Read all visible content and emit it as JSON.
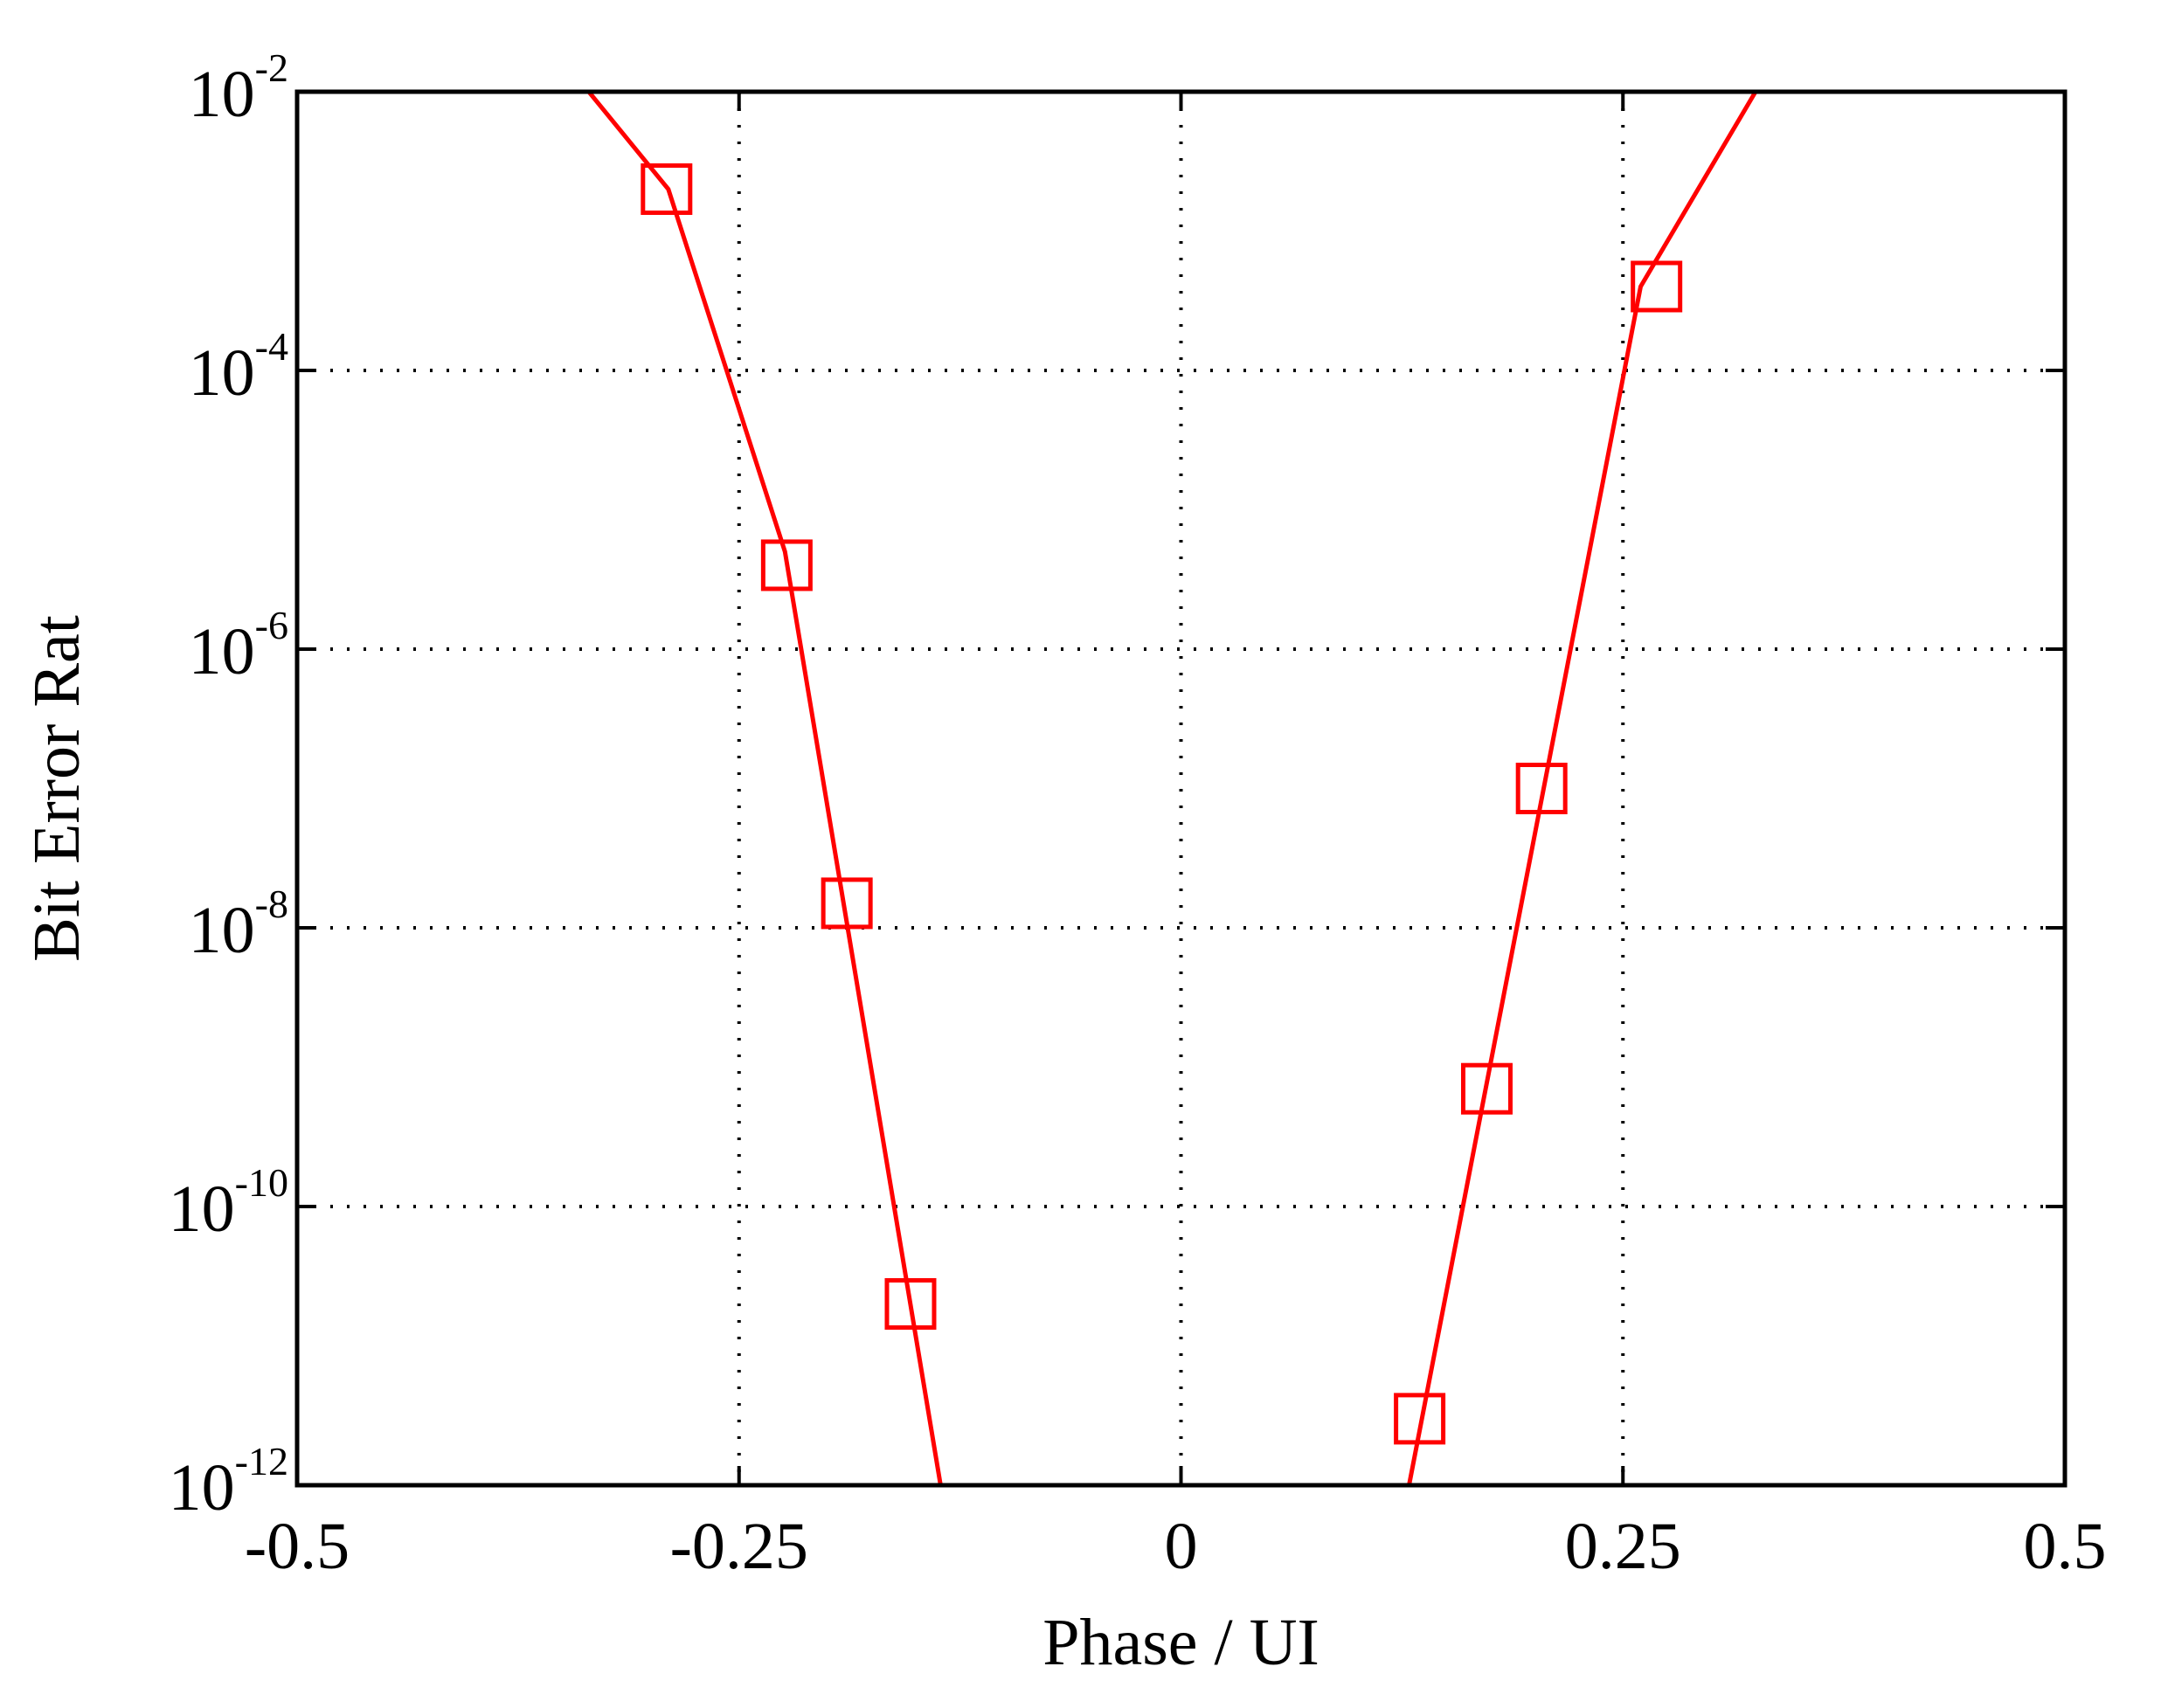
{
  "chart_data": {
    "type": "line",
    "xlabel": "Phase / UI",
    "ylabel": "Bit Error Rat",
    "xlim": [
      -0.5,
      0.5
    ],
    "ylim_log10": [
      -12,
      -2
    ],
    "y_scale": "log",
    "grid": true,
    "xticks": [
      {
        "value": -0.5,
        "label": "-0.5"
      },
      {
        "value": -0.25,
        "label": "-0.25"
      },
      {
        "value": 0,
        "label": "0"
      },
      {
        "value": 0.25,
        "label": "0.25"
      },
      {
        "value": 0.5,
        "label": "0.5"
      }
    ],
    "yticks": [
      {
        "value": 0.01,
        "base": "10",
        "exp": "-2"
      },
      {
        "value": 0.0001,
        "base": "10",
        "exp": "-4"
      },
      {
        "value": 1e-06,
        "base": "10",
        "exp": "-6"
      },
      {
        "value": 1e-08,
        "base": "10",
        "exp": "-8"
      },
      {
        "value": 1e-10,
        "base": "10",
        "exp": "-10"
      },
      {
        "value": 1e-12,
        "base": "10",
        "exp": "-12"
      }
    ],
    "colors": {
      "series": "#ff0000"
    },
    "series": [
      {
        "role": "left-measured",
        "marker": "square",
        "line": false,
        "x": [
          -0.291,
          -0.223,
          -0.189,
          -0.153
        ],
        "y": [
          0.002,
          4e-06,
          1.5e-08,
          2e-11
        ]
      },
      {
        "role": "left-fit",
        "marker": "none",
        "line": true,
        "x": [
          -0.335,
          -0.29,
          -0.224,
          -0.136
        ],
        "y": [
          0.01,
          0.002,
          5e-06,
          1e-12
        ]
      },
      {
        "role": "right-measured",
        "marker": "square",
        "line": false,
        "x": [
          0.135,
          0.173,
          0.204,
          0.269
        ],
        "y": [
          3e-12,
          7e-10,
          1e-07,
          0.0004
        ]
      },
      {
        "role": "right-fit",
        "marker": "none",
        "line": true,
        "x": [
          0.129,
          0.26,
          0.325
        ],
        "y": [
          1e-12,
          0.0004,
          0.01
        ]
      }
    ]
  }
}
